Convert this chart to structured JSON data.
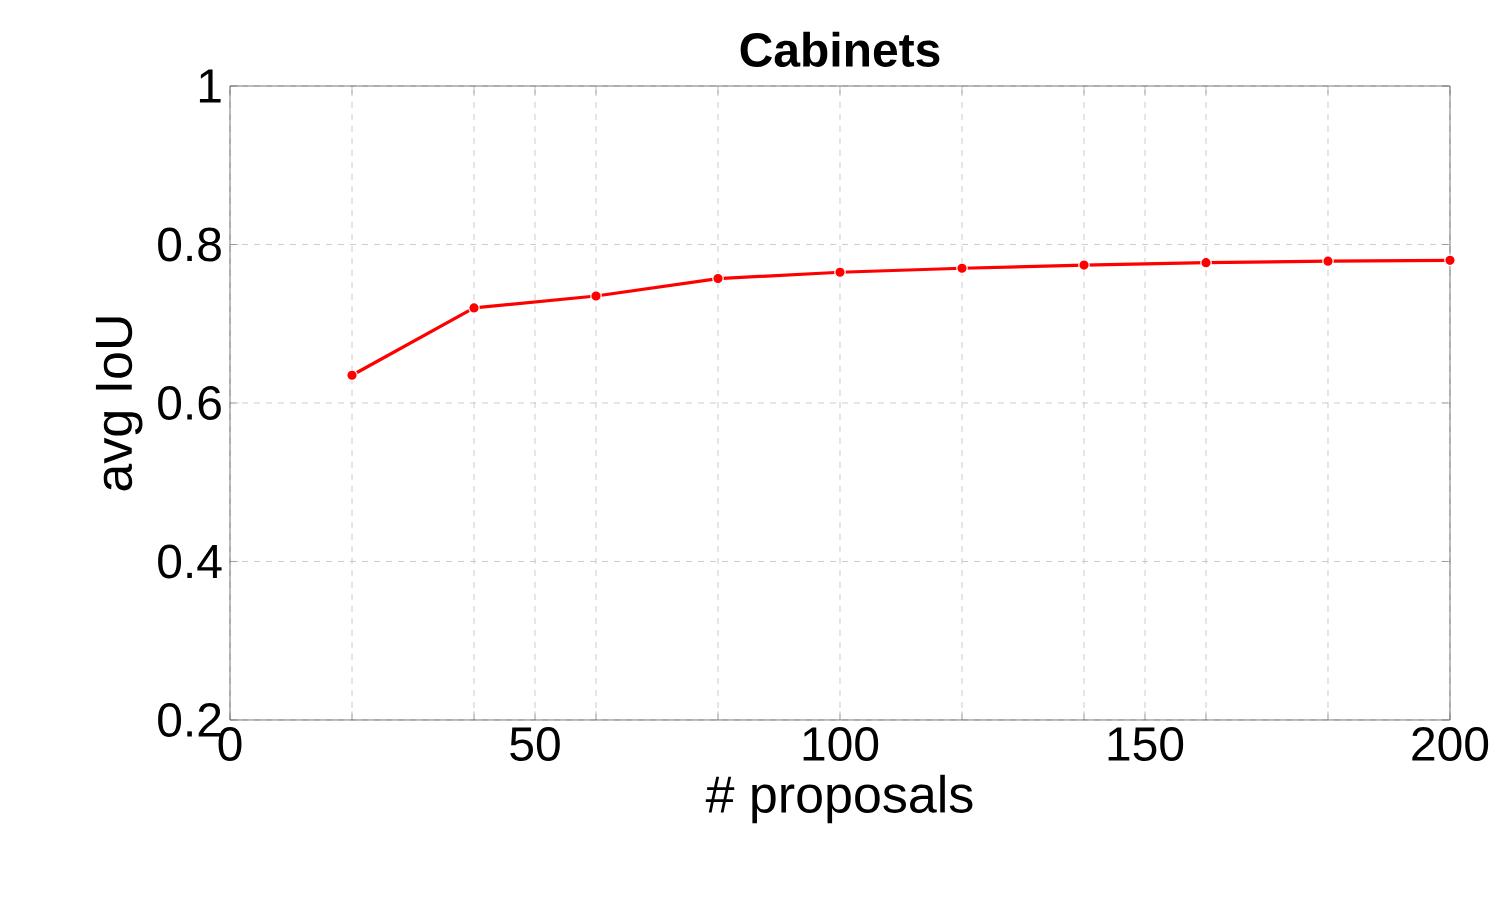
{
  "chart_data": {
    "type": "line",
    "title": "Cabinets",
    "xlabel": "# proposals",
    "ylabel": "avg IoU",
    "x": [
      20,
      40,
      60,
      80,
      100,
      120,
      140,
      160,
      180,
      200
    ],
    "series": [
      {
        "color": "#ff0000",
        "values": [
          0.635,
          0.72,
          0.735,
          0.757,
          0.765,
          0.77,
          0.774,
          0.777,
          0.779,
          0.78
        ]
      }
    ],
    "xlim": [
      0,
      200
    ],
    "ylim": [
      0.2,
      1
    ],
    "xticks": [
      0,
      {
        "value": 20,
        "label": null
      },
      {
        "value": 40,
        "label": null
      },
      50,
      {
        "value": 60,
        "label": null
      },
      {
        "value": 80,
        "label": null
      },
      100,
      {
        "value": 120,
        "label": null
      },
      {
        "value": 140,
        "label": null
      },
      150,
      {
        "value": 160,
        "label": null
      },
      {
        "value": 180,
        "label": null
      },
      200
    ],
    "yticks": [
      0.2,
      0.4,
      0.6,
      0.8,
      1
    ],
    "grid": true,
    "marker": "circle",
    "line_style": "solid"
  }
}
